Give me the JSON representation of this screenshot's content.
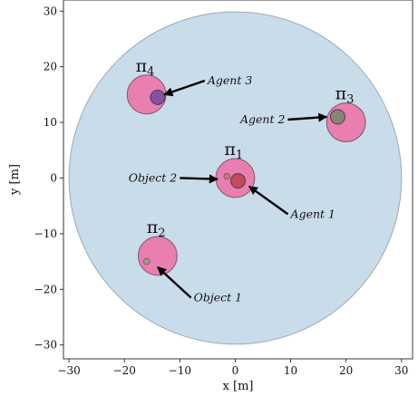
{
  "chart_data": {
    "type": "scatter",
    "xlabel": "x [m]",
    "ylabel": "y [m]",
    "xlim": [
      -31,
      32
    ],
    "ylim": [
      -32.5,
      32
    ],
    "xticks": [
      -30,
      -20,
      -10,
      0,
      10,
      20,
      30
    ],
    "yticks": [
      -30,
      -20,
      -10,
      0,
      10,
      20,
      30
    ],
    "xtick_labels": [
      "−30",
      "−20",
      "−10",
      "0",
      "10",
      "20",
      "30"
    ],
    "ytick_labels": [
      "−30",
      "−20",
      "−10",
      "0",
      "10",
      "20",
      "30"
    ],
    "arena": {
      "center": [
        0,
        0
      ],
      "radius": 30,
      "color": "#c9dcea"
    },
    "regions": [
      {
        "label": "π",
        "subscript": "1",
        "center": [
          0,
          0
        ],
        "radius": 3.5,
        "color": "#e97fb0"
      },
      {
        "label": "π",
        "subscript": "2",
        "center": [
          -14,
          -14
        ],
        "radius": 3.5,
        "color": "#e97fb0"
      },
      {
        "label": "π",
        "subscript": "3",
        "center": [
          20,
          10
        ],
        "radius": 3.5,
        "color": "#e97fb0"
      },
      {
        "label": "π",
        "subscript": "4",
        "center": [
          -16,
          15
        ],
        "radius": 3.5,
        "color": "#e97fb0"
      }
    ],
    "agents": [
      {
        "label": "Agent 1",
        "position": [
          0.5,
          -0.5
        ],
        "radius": 1.3,
        "color": "#c44a5e"
      },
      {
        "label": "Agent 2",
        "position": [
          18.5,
          11
        ],
        "radius": 1.3,
        "color": "#8c8474"
      },
      {
        "label": "Agent 3",
        "position": [
          -14,
          14.5
        ],
        "radius": 1.3,
        "color": "#8a4ea4"
      }
    ],
    "objects": [
      {
        "label": "Object 1",
        "position": [
          -16,
          -15
        ],
        "radius": 0.55,
        "color": "#a89a8c"
      },
      {
        "label": "Object 2",
        "position": [
          -1.5,
          0.3
        ],
        "radius": 0.55,
        "color": "#d6707e"
      }
    ],
    "annotations": [
      {
        "text": "Agent 3",
        "text_at": [
          -5,
          17.5
        ],
        "arrow_to": [
          -12.8,
          15
        ],
        "anchor": "start"
      },
      {
        "text": "Agent 2",
        "text_at": [
          9,
          10.5
        ],
        "arrow_to": [
          16.5,
          11
        ],
        "anchor": "end"
      },
      {
        "text": "Agent 1",
        "text_at": [
          10,
          -6.5
        ],
        "arrow_to": [
          2.5,
          -1.5
        ],
        "anchor": "start"
      },
      {
        "text": "Object 2",
        "text_at": [
          -10.5,
          0
        ],
        "arrow_to": [
          -3.2,
          -0.2
        ],
        "anchor": "end"
      },
      {
        "text": "Object 1",
        "text_at": [
          -7.5,
          -21.5
        ],
        "arrow_to": [
          -14,
          -16
        ],
        "anchor": "start"
      }
    ]
  }
}
